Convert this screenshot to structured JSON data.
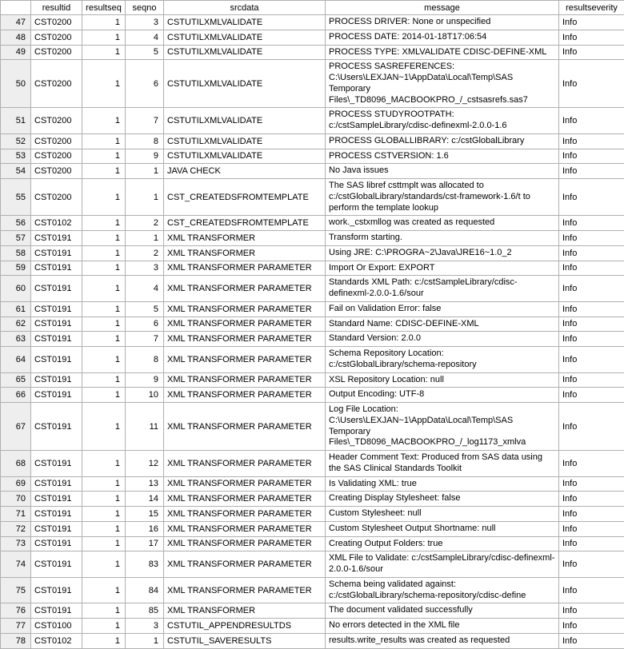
{
  "columns": [
    "",
    "resultid",
    "resultseq",
    "seqno",
    "srcdata",
    "message",
    "resultseverity"
  ],
  "rows": [
    {
      "n": 47,
      "resultid": "CST0200",
      "resultseq": 1,
      "seqno": 3,
      "srcdata": "CSTUTILXMLVALIDATE",
      "message": "PROCESS DRIVER: None or unspecified",
      "severity": "Info"
    },
    {
      "n": 48,
      "resultid": "CST0200",
      "resultseq": 1,
      "seqno": 4,
      "srcdata": "CSTUTILXMLVALIDATE",
      "message": "PROCESS DATE: 2014-01-18T17:06:54",
      "severity": "Info"
    },
    {
      "n": 49,
      "resultid": "CST0200",
      "resultseq": 1,
      "seqno": 5,
      "srcdata": "CSTUTILXMLVALIDATE",
      "message": "PROCESS TYPE: XMLVALIDATE CDISC-DEFINE-XML",
      "severity": "Info"
    },
    {
      "n": 50,
      "resultid": "CST0200",
      "resultseq": 1,
      "seqno": 6,
      "srcdata": "CSTUTILXMLVALIDATE",
      "message": "PROCESS SASREFERENCES: C:\\Users\\LEXJAN~1\\AppData\\Local\\Temp\\SAS Temporary Files\\_TD8096_MACBOOKPRO_/_cstsasrefs.sas7",
      "severity": "Info"
    },
    {
      "n": 51,
      "resultid": "CST0200",
      "resultseq": 1,
      "seqno": 7,
      "srcdata": "CSTUTILXMLVALIDATE",
      "message": "PROCESS STUDYROOTPATH: c:/cstSampleLibrary/cdisc-definexml-2.0.0-1.6",
      "severity": "Info"
    },
    {
      "n": 52,
      "resultid": "CST0200",
      "resultseq": 1,
      "seqno": 8,
      "srcdata": "CSTUTILXMLVALIDATE",
      "message": "PROCESS GLOBALLIBRARY: c:/cstGlobalLibrary",
      "severity": "Info"
    },
    {
      "n": 53,
      "resultid": "CST0200",
      "resultseq": 1,
      "seqno": 9,
      "srcdata": "CSTUTILXMLVALIDATE",
      "message": "PROCESS CSTVERSION: 1.6",
      "severity": "Info"
    },
    {
      "n": 54,
      "resultid": "CST0200",
      "resultseq": 1,
      "seqno": 1,
      "srcdata": "JAVA CHECK",
      "message": "No Java issues",
      "severity": "Info"
    },
    {
      "n": 55,
      "resultid": "CST0200",
      "resultseq": 1,
      "seqno": 1,
      "srcdata": "CST_CREATEDSFROMTEMPLATE",
      "message": "The SAS libref csttmplt was allocated to c:/cstGlobalLibrary/standards/cst-framework-1.6/t to perform the template lookup",
      "severity": "Info"
    },
    {
      "n": 56,
      "resultid": "CST0102",
      "resultseq": 1,
      "seqno": 2,
      "srcdata": "CST_CREATEDSFROMTEMPLATE",
      "message": "work._cstxmllog was created as requested",
      "severity": "Info"
    },
    {
      "n": 57,
      "resultid": "CST0191",
      "resultseq": 1,
      "seqno": 1,
      "srcdata": "XML TRANSFORMER",
      "message": "Transform starting.",
      "severity": "Info"
    },
    {
      "n": 58,
      "resultid": "CST0191",
      "resultseq": 1,
      "seqno": 2,
      "srcdata": "XML TRANSFORMER",
      "message": "Using JRE: C:\\PROGRA~2\\Java\\JRE16~1.0_2",
      "severity": "Info"
    },
    {
      "n": 59,
      "resultid": "CST0191",
      "resultseq": 1,
      "seqno": 3,
      "srcdata": "XML TRANSFORMER PARAMETER",
      "message": "Import Or Export: EXPORT",
      "severity": "Info"
    },
    {
      "n": 60,
      "resultid": "CST0191",
      "resultseq": 1,
      "seqno": 4,
      "srcdata": "XML TRANSFORMER PARAMETER",
      "message": "Standards XML Path: c:/cstSampleLibrary/cdisc-definexml-2.0.0-1.6/sour",
      "severity": "Info"
    },
    {
      "n": 61,
      "resultid": "CST0191",
      "resultseq": 1,
      "seqno": 5,
      "srcdata": "XML TRANSFORMER PARAMETER",
      "message": "Fail on Validation Error: false",
      "severity": "Info"
    },
    {
      "n": 62,
      "resultid": "CST0191",
      "resultseq": 1,
      "seqno": 6,
      "srcdata": "XML TRANSFORMER PARAMETER",
      "message": "Standard Name: CDISC-DEFINE-XML",
      "severity": "Info"
    },
    {
      "n": 63,
      "resultid": "CST0191",
      "resultseq": 1,
      "seqno": 7,
      "srcdata": "XML TRANSFORMER PARAMETER",
      "message": "Standard Version: 2.0.0",
      "severity": "Info"
    },
    {
      "n": 64,
      "resultid": "CST0191",
      "resultseq": 1,
      "seqno": 8,
      "srcdata": "XML TRANSFORMER PARAMETER",
      "message": "Schema Repository Location: c:/cstGlobalLibrary/schema-repository",
      "severity": "Info"
    },
    {
      "n": 65,
      "resultid": "CST0191",
      "resultseq": 1,
      "seqno": 9,
      "srcdata": "XML TRANSFORMER PARAMETER",
      "message": "XSL Repository Location: null",
      "severity": "Info"
    },
    {
      "n": 66,
      "resultid": "CST0191",
      "resultseq": 1,
      "seqno": 10,
      "srcdata": "XML TRANSFORMER PARAMETER",
      "message": "Output Encoding: UTF-8",
      "severity": "Info"
    },
    {
      "n": 67,
      "resultid": "CST0191",
      "resultseq": 1,
      "seqno": 11,
      "srcdata": "XML TRANSFORMER PARAMETER",
      "message": "Log File Location: C:\\Users\\LEXJAN~1\\AppData\\Local\\Temp\\SAS Temporary Files\\_TD8096_MACBOOKPRO_/_log1173_xmlva",
      "severity": "Info"
    },
    {
      "n": 68,
      "resultid": "CST0191",
      "resultseq": 1,
      "seqno": 12,
      "srcdata": "XML TRANSFORMER PARAMETER",
      "message": "Header Comment Text: Produced from SAS data using the SAS Clinical Standards Toolkit",
      "severity": "Info"
    },
    {
      "n": 69,
      "resultid": "CST0191",
      "resultseq": 1,
      "seqno": 13,
      "srcdata": "XML TRANSFORMER PARAMETER",
      "message": "Is Validating XML: true",
      "severity": "Info"
    },
    {
      "n": 70,
      "resultid": "CST0191",
      "resultseq": 1,
      "seqno": 14,
      "srcdata": "XML TRANSFORMER PARAMETER",
      "message": "Creating Display Stylesheet: false",
      "severity": "Info"
    },
    {
      "n": 71,
      "resultid": "CST0191",
      "resultseq": 1,
      "seqno": 15,
      "srcdata": "XML TRANSFORMER PARAMETER",
      "message": "Custom Stylesheet: null",
      "severity": "Info"
    },
    {
      "n": 72,
      "resultid": "CST0191",
      "resultseq": 1,
      "seqno": 16,
      "srcdata": "XML TRANSFORMER PARAMETER",
      "message": "Custom Stylesheet Output Shortname: null",
      "severity": "Info"
    },
    {
      "n": 73,
      "resultid": "CST0191",
      "resultseq": 1,
      "seqno": 17,
      "srcdata": "XML TRANSFORMER PARAMETER",
      "message": "Creating Output Folders: true",
      "severity": "Info"
    },
    {
      "n": 74,
      "resultid": "CST0191",
      "resultseq": 1,
      "seqno": 83,
      "srcdata": "XML TRANSFORMER PARAMETER",
      "message": "XML File to Validate: c:/cstSampleLibrary/cdisc-definexml-2.0.0-1.6/sour",
      "severity": "Info"
    },
    {
      "n": 75,
      "resultid": "CST0191",
      "resultseq": 1,
      "seqno": 84,
      "srcdata": "XML TRANSFORMER PARAMETER",
      "message": "Schema being validated against: c:/cstGlobalLibrary/schema-repository/cdisc-define",
      "severity": "Info"
    },
    {
      "n": 76,
      "resultid": "CST0191",
      "resultseq": 1,
      "seqno": 85,
      "srcdata": "XML TRANSFORMER",
      "message": "The document validated successfully",
      "severity": "Info"
    },
    {
      "n": 77,
      "resultid": "CST0100",
      "resultseq": 1,
      "seqno": 3,
      "srcdata": "CSTUTIL_APPENDRESULTDS",
      "message": "No errors detected in the XML file",
      "severity": "Info"
    },
    {
      "n": 78,
      "resultid": "CST0102",
      "resultseq": 1,
      "seqno": 1,
      "srcdata": "CSTUTIL_SAVERESULTS",
      "message": "results.write_results was created as requested",
      "severity": "Info"
    }
  ]
}
